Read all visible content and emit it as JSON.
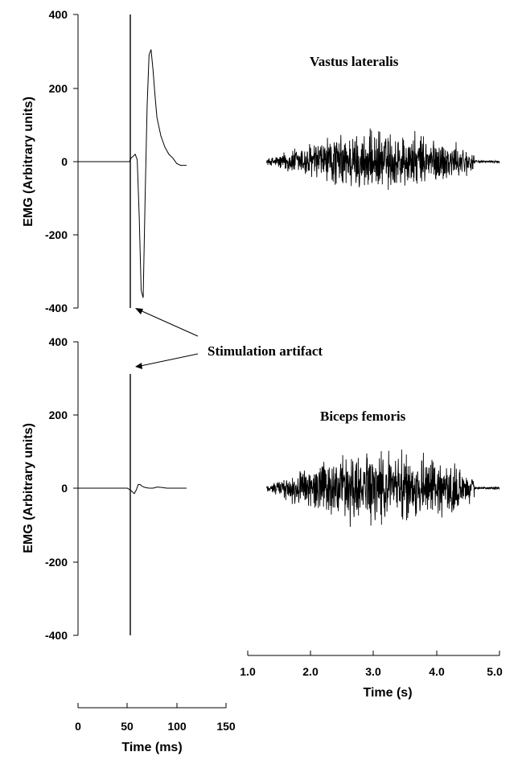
{
  "chart_data": [
    {
      "type": "line",
      "panel": "top",
      "ylabel": "EMG (Arbitrary units)",
      "ylim": [
        -400,
        400
      ],
      "yticks": [
        400,
        200,
        0,
        -200,
        -400
      ],
      "muscle_label": "Vastus lateralis",
      "series": [
        {
          "x_unit": "ms",
          "x": [
            0,
            50,
            52,
            54,
            56,
            58,
            60,
            62,
            64,
            66,
            68,
            70,
            72,
            74,
            76,
            78,
            80,
            84,
            88,
            92,
            96,
            100,
            104,
            110
          ],
          "y": [
            0,
            0,
            0,
            10,
            15,
            20,
            5,
            -150,
            -350,
            -370,
            -100,
            150,
            290,
            305,
            250,
            180,
            120,
            70,
            40,
            20,
            10,
            -5,
            -10,
            -10
          ]
        },
        {
          "x_unit": "s",
          "x_range": [
            1.3,
            5.0
          ],
          "burst_range": [
            1.3,
            4.6
          ],
          "peak_positive": 165,
          "peak_negative": -145
        }
      ]
    },
    {
      "type": "line",
      "panel": "bottom",
      "ylabel": "EMG (Arbitrary units)",
      "ylim": [
        -400,
        400
      ],
      "yticks": [
        400,
        200,
        0,
        -200,
        -400
      ],
      "muscle_label": "Biceps femoris",
      "series": [
        {
          "x_unit": "ms",
          "x": [
            0,
            50,
            53,
            55,
            57,
            59,
            61,
            63,
            65,
            68,
            72,
            76,
            80,
            85,
            90,
            100,
            110
          ],
          "y": [
            0,
            0,
            -5,
            -10,
            -15,
            -5,
            10,
            10,
            5,
            2,
            0,
            0,
            3,
            2,
            0,
            0,
            0
          ]
        },
        {
          "x_unit": "s",
          "x_range": [
            1.3,
            5.0
          ],
          "burst_range": [
            1.3,
            4.6
          ],
          "peak_positive": 130,
          "peak_negative": -140
        }
      ]
    }
  ],
  "stim_artifact_ms": 52,
  "annotation": "Stimulation artifact",
  "x_ms_axis": {
    "ticks": [
      "0",
      "50",
      "100",
      "150"
    ],
    "label": "Time (ms)",
    "range": [
      0,
      150
    ]
  },
  "x_s_axis": {
    "ticks": [
      "1.0",
      "2.0",
      "3.0",
      "4.0",
      "5.0"
    ],
    "label": "Time (s)",
    "range": [
      1.0,
      5.0
    ]
  },
  "top_yticks_text": [
    "400",
    "200",
    "0",
    "-200",
    "-400"
  ],
  "bottom_yticks_text": [
    "400",
    "200",
    "0",
    "-200",
    "-400"
  ]
}
